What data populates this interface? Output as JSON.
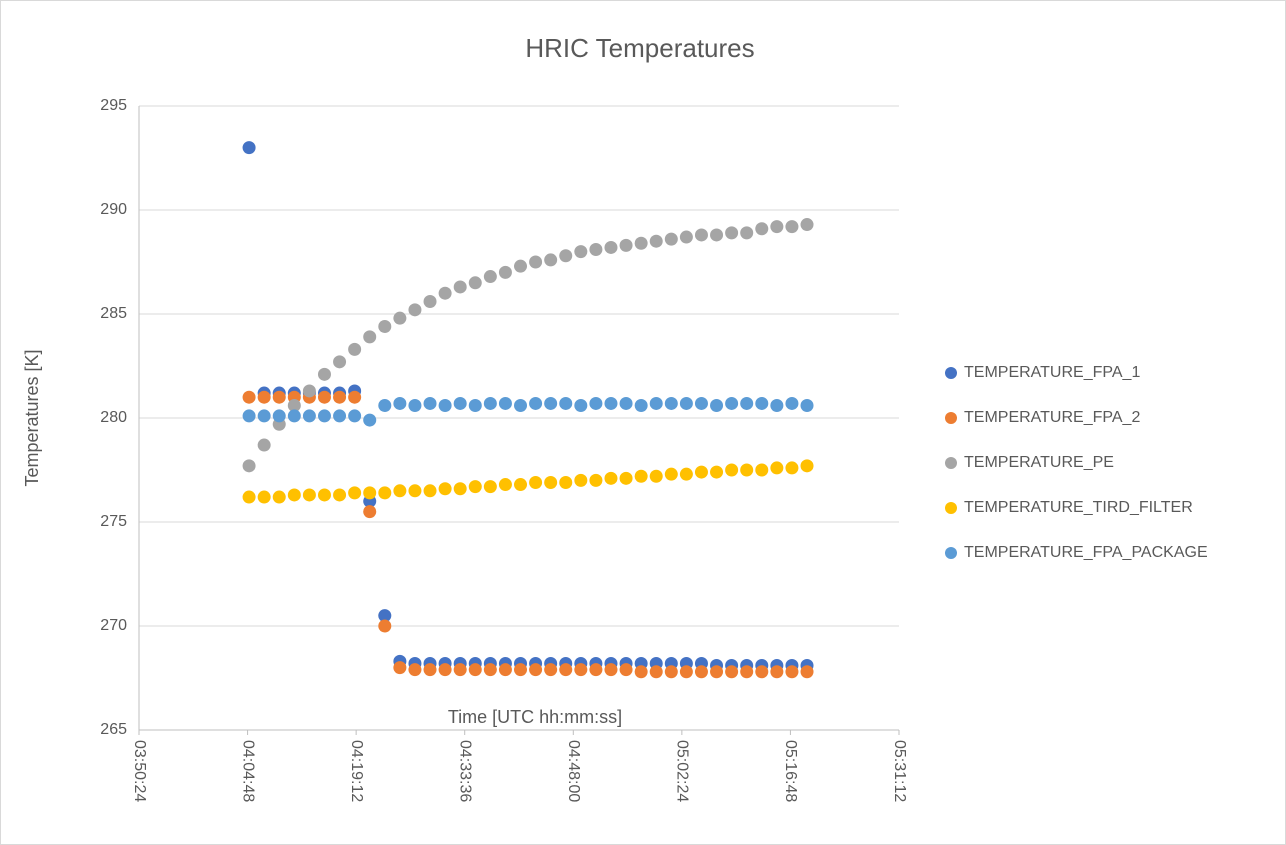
{
  "chart_data": {
    "type": "scatter",
    "title": "HRIC Temperatures",
    "x_label": "Time [UTC hh:mm:ss]",
    "y_label": "Temperatures [K]",
    "xlim": [
      13824,
      19872
    ],
    "xticks": [
      {
        "value": 13824,
        "label": "03:50:24"
      },
      {
        "value": 14688,
        "label": "04:04:48"
      },
      {
        "value": 15552,
        "label": "04:19:12"
      },
      {
        "value": 16416,
        "label": "04:33:36"
      },
      {
        "value": 17280,
        "label": "04:48:00"
      },
      {
        "value": 18144,
        "label": "05:02:24"
      },
      {
        "value": 19008,
        "label": "05:16:48"
      },
      {
        "value": 19872,
        "label": "05:31:12"
      }
    ],
    "ylim": [
      265,
      295
    ],
    "yticks": [
      265,
      270,
      275,
      280,
      285,
      290,
      295
    ],
    "grid": true,
    "legend": "right",
    "x": [
      14700,
      14820,
      14940,
      15060,
      15180,
      15300,
      15420,
      15540,
      15660,
      15780,
      15900,
      16020,
      16140,
      16260,
      16380,
      16500,
      16620,
      16740,
      16860,
      16980,
      17100,
      17220,
      17340,
      17460,
      17580,
      17700,
      17820,
      17940,
      18060,
      18180,
      18300,
      18420,
      18540,
      18660,
      18780,
      18900,
      19020,
      19140
    ],
    "series": [
      {
        "name": "TEMPERATURE_FPA_1",
        "color": "#4472c4",
        "values": [
          293,
          281.2,
          281.2,
          281.2,
          281.2,
          281.2,
          281.2,
          281.3,
          276,
          270.5,
          268.3,
          268.2,
          268.2,
          268.2,
          268.2,
          268.2,
          268.2,
          268.2,
          268.2,
          268.2,
          268.2,
          268.2,
          268.2,
          268.2,
          268.2,
          268.2,
          268.2,
          268.2,
          268.2,
          268.2,
          268.2,
          268.1,
          268.1,
          268.1,
          268.1,
          268.1,
          268.1,
          268.1
        ]
      },
      {
        "name": "TEMPERATURE_FPA_2",
        "color": "#ed7d31",
        "values": [
          281,
          281,
          281,
          281,
          281,
          281,
          281,
          281,
          275.5,
          270,
          268,
          267.9,
          267.9,
          267.9,
          267.9,
          267.9,
          267.9,
          267.9,
          267.9,
          267.9,
          267.9,
          267.9,
          267.9,
          267.9,
          267.9,
          267.9,
          267.8,
          267.8,
          267.8,
          267.8,
          267.8,
          267.8,
          267.8,
          267.8,
          267.8,
          267.8,
          267.8,
          267.8
        ]
      },
      {
        "name": "TEMPERATURE_PE",
        "color": "#a5a5a5",
        "values": [
          277.7,
          278.7,
          279.7,
          280.6,
          281.3,
          282.1,
          282.7,
          283.3,
          283.9,
          284.4,
          284.8,
          285.2,
          285.6,
          286,
          286.3,
          286.5,
          286.8,
          287,
          287.3,
          287.5,
          287.6,
          287.8,
          288,
          288.1,
          288.2,
          288.3,
          288.4,
          288.5,
          288.6,
          288.7,
          288.8,
          288.8,
          288.9,
          288.9,
          289.1,
          289.2,
          289.2,
          289.3
        ]
      },
      {
        "name": "TEMPERATURE_TIRD_FILTER",
        "color": "#ffc000",
        "values": [
          276.2,
          276.2,
          276.2,
          276.3,
          276.3,
          276.3,
          276.3,
          276.4,
          276.4,
          276.4,
          276.5,
          276.5,
          276.5,
          276.6,
          276.6,
          276.7,
          276.7,
          276.8,
          276.8,
          276.9,
          276.9,
          276.9,
          277,
          277,
          277.1,
          277.1,
          277.2,
          277.2,
          277.3,
          277.3,
          277.4,
          277.4,
          277.5,
          277.5,
          277.5,
          277.6,
          277.6,
          277.7
        ]
      },
      {
        "name": "TEMPERATURE_FPA_PACKAGE",
        "color": "#5b9bd5",
        "values": [
          280.1,
          280.1,
          280.1,
          280.1,
          280.1,
          280.1,
          280.1,
          280.1,
          279.9,
          280.6,
          280.7,
          280.6,
          280.7,
          280.6,
          280.7,
          280.6,
          280.7,
          280.7,
          280.6,
          280.7,
          280.7,
          280.7,
          280.6,
          280.7,
          280.7,
          280.7,
          280.6,
          280.7,
          280.7,
          280.7,
          280.7,
          280.6,
          280.7,
          280.7,
          280.7,
          280.6,
          280.7,
          280.6
        ]
      }
    ]
  }
}
